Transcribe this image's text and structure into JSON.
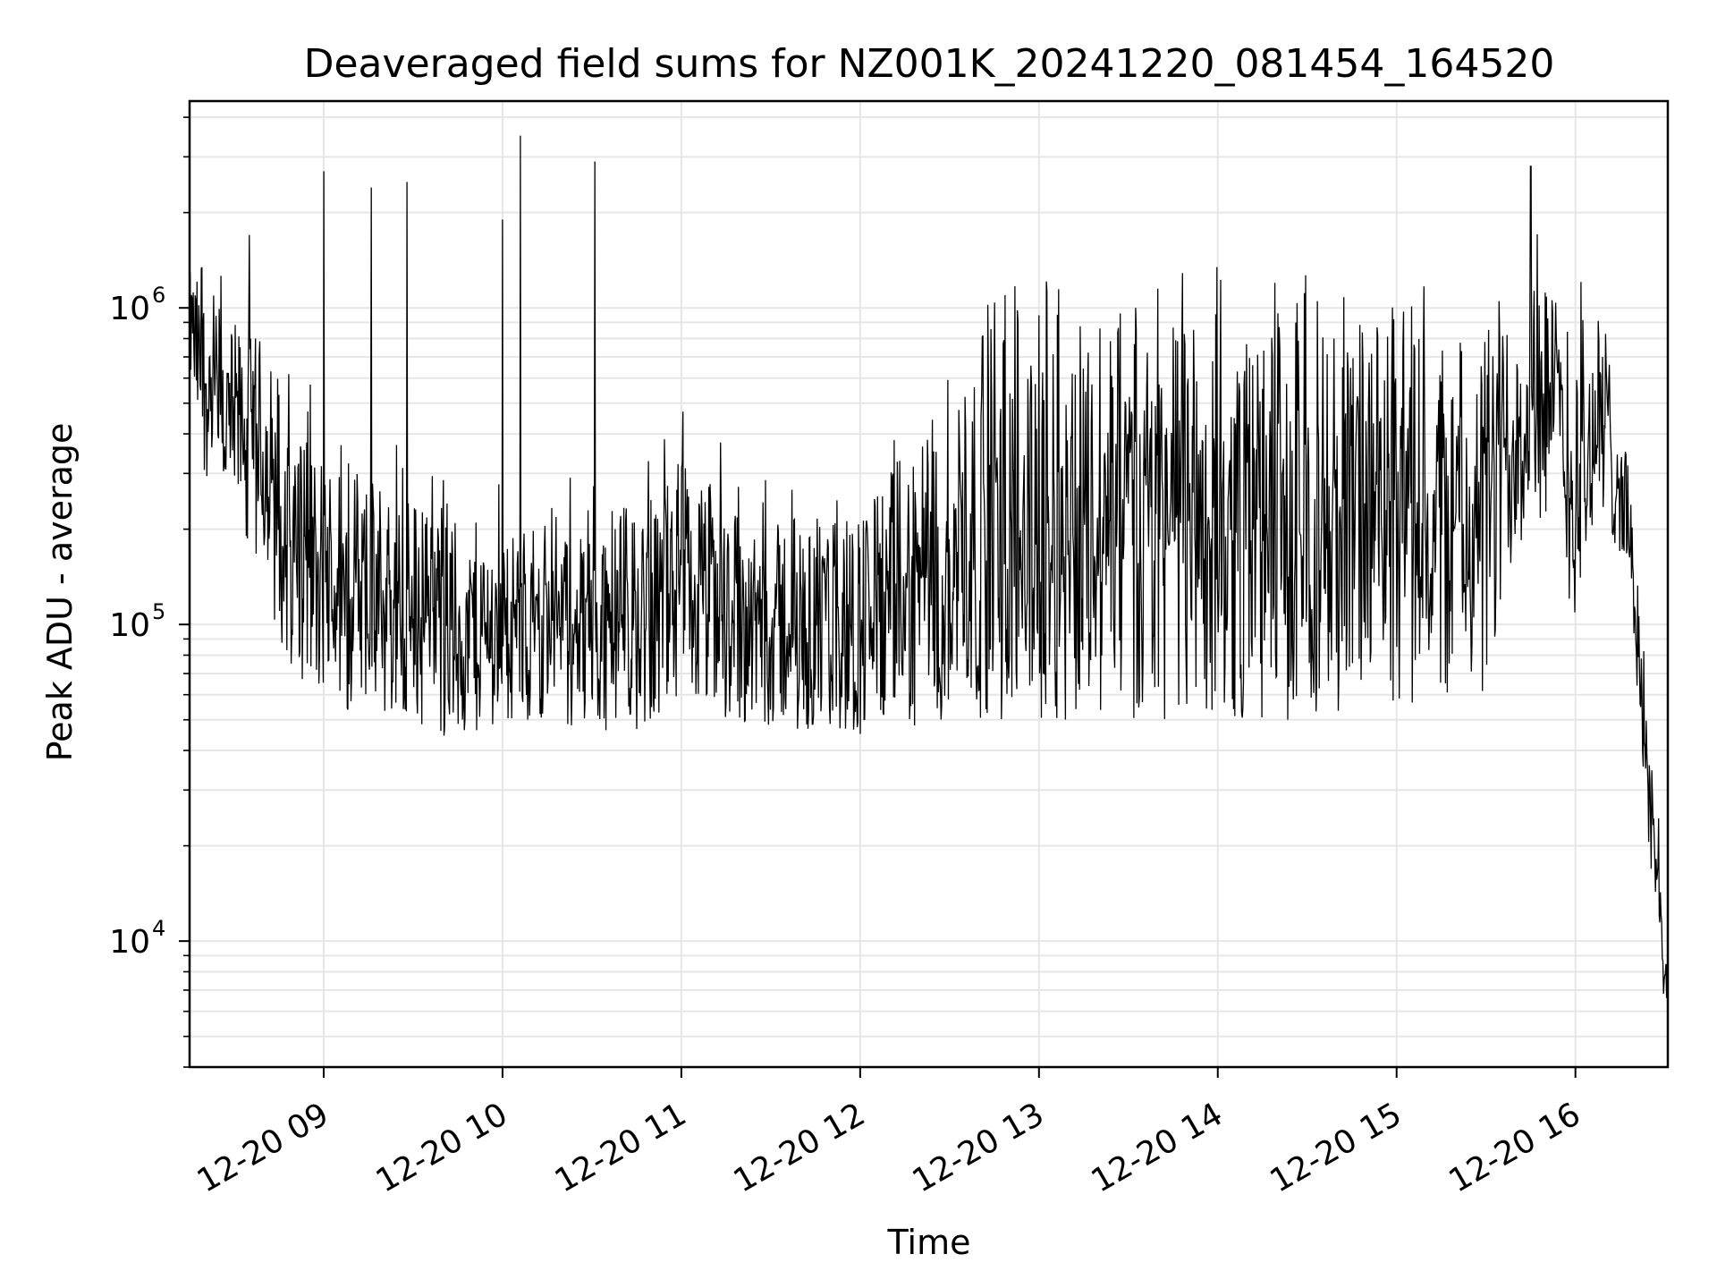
{
  "chart_data": {
    "type": "line",
    "title": "Deaveraged field sums for NZ001K_20241220_081454_164520",
    "xlabel": "Time",
    "ylabel": "Peak ADU - average",
    "yscale": "log",
    "ylim": [
      4000,
      4500000
    ],
    "xlim": [
      "2024-12-20 08:15",
      "2024-12-20 16:31"
    ],
    "x_ticks": [
      {
        "value": "2024-12-20 09:00",
        "label": "12-20 09"
      },
      {
        "value": "2024-12-20 10:00",
        "label": "12-20 10"
      },
      {
        "value": "2024-12-20 11:00",
        "label": "12-20 11"
      },
      {
        "value": "2024-12-20 12:00",
        "label": "12-20 12"
      },
      {
        "value": "2024-12-20 13:00",
        "label": "12-20 13"
      },
      {
        "value": "2024-12-20 14:00",
        "label": "12-20 14"
      },
      {
        "value": "2024-12-20 15:00",
        "label": "12-20 15"
      },
      {
        "value": "2024-12-20 16:00",
        "label": "12-20 16"
      }
    ],
    "y_ticks": [
      {
        "value": 10000,
        "base": "10",
        "exp": "4"
      },
      {
        "value": 100000,
        "base": "10",
        "exp": "5"
      },
      {
        "value": 1000000,
        "base": "10",
        "exp": "6"
      }
    ],
    "grid": true,
    "line_color": "#000000",
    "grid_color": "#e6e6e6",
    "series": [
      {
        "envelope": [
          {
            "x": "2024-12-20 08:15",
            "low": 600000,
            "high": 1300000
          },
          {
            "x": "2024-12-20 08:20",
            "low": 300000,
            "high": 1200000
          },
          {
            "x": "2024-12-20 08:30",
            "low": 200000,
            "high": 900000
          },
          {
            "x": "2024-12-20 08:40",
            "low": 120000,
            "high": 800000
          },
          {
            "x": "2024-12-20 08:50",
            "low": 70000,
            "high": 500000
          },
          {
            "x": "2024-12-20 09:00",
            "low": 55000,
            "high": 350000
          },
          {
            "x": "2024-12-20 09:15",
            "low": 50000,
            "high": 300000
          },
          {
            "x": "2024-12-20 09:30",
            "low": 48000,
            "high": 250000
          },
          {
            "x": "2024-12-20 09:45",
            "low": 42000,
            "high": 220000
          },
          {
            "x": "2024-12-20 10:00",
            "low": 50000,
            "high": 200000
          },
          {
            "x": "2024-12-20 10:15",
            "low": 50000,
            "high": 210000
          },
          {
            "x": "2024-12-20 10:30",
            "low": 45000,
            "high": 220000
          },
          {
            "x": "2024-12-20 10:45",
            "low": 45000,
            "high": 230000
          },
          {
            "x": "2024-12-20 11:00",
            "low": 55000,
            "high": 350000
          },
          {
            "x": "2024-12-20 11:15",
            "low": 50000,
            "high": 260000
          },
          {
            "x": "2024-12-20 11:30",
            "low": 48000,
            "high": 230000
          },
          {
            "x": "2024-12-20 11:45",
            "low": 45000,
            "high": 220000
          },
          {
            "x": "2024-12-20 12:00",
            "low": 45000,
            "high": 240000
          },
          {
            "x": "2024-12-20 12:15",
            "low": 45000,
            "high": 350000
          },
          {
            "x": "2024-12-20 12:30",
            "low": 50000,
            "high": 700000
          },
          {
            "x": "2024-12-20 12:45",
            "low": 50000,
            "high": 900000
          },
          {
            "x": "2024-12-20 13:00",
            "low": 50000,
            "high": 950000
          },
          {
            "x": "2024-12-20 13:30",
            "low": 50000,
            "high": 1000000
          },
          {
            "x": "2024-12-20 14:00",
            "low": 50000,
            "high": 1000000
          },
          {
            "x": "2024-12-20 14:30",
            "low": 50000,
            "high": 950000
          },
          {
            "x": "2024-12-20 15:00",
            "low": 55000,
            "high": 900000
          },
          {
            "x": "2024-12-20 15:30",
            "low": 60000,
            "high": 900000
          },
          {
            "x": "2024-12-20 15:45",
            "low": 250000,
            "high": 1700000
          },
          {
            "x": "2024-12-20 16:00",
            "low": 100000,
            "high": 900000
          },
          {
            "x": "2024-12-20 16:10",
            "low": 200000,
            "high": 1000000
          },
          {
            "x": "2024-12-20 16:18",
            "low": 150000,
            "high": 300000
          },
          {
            "x": "2024-12-20 16:24",
            "low": 20000,
            "high": 60000
          },
          {
            "x": "2024-12-20 16:31",
            "low": 5000,
            "high": 7000
          }
        ],
        "spikes": [
          {
            "x": "2024-12-20 09:00",
            "value": 2700000
          },
          {
            "x": "2024-12-20 09:16",
            "value": 2400000
          },
          {
            "x": "2024-12-20 09:28",
            "value": 2500000
          },
          {
            "x": "2024-12-20 10:06",
            "value": 3500000
          },
          {
            "x": "2024-12-20 10:31",
            "value": 2900000
          },
          {
            "x": "2024-12-20 15:45",
            "value": 2800000
          },
          {
            "x": "2024-12-20 10:00",
            "value": 1900000
          },
          {
            "x": "2024-12-20 08:35",
            "value": 1700000
          }
        ]
      }
    ]
  }
}
